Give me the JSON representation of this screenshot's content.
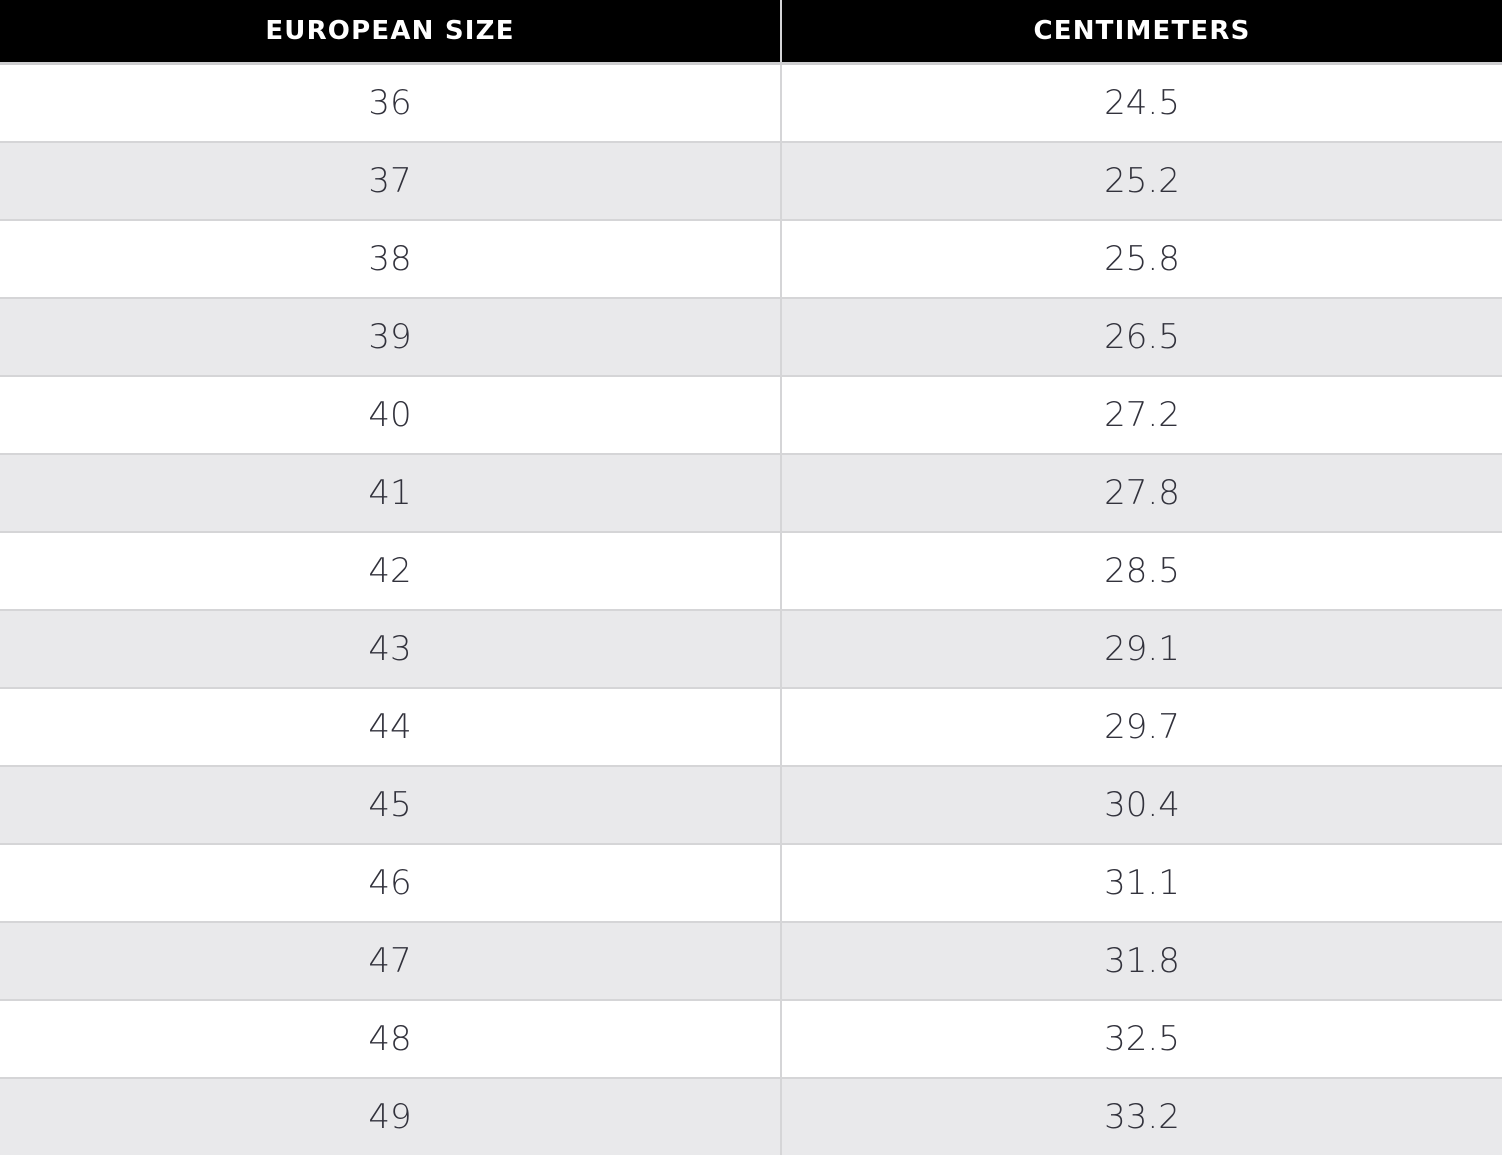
{
  "table": {
    "headers": [
      "EUROPEAN SIZE",
      "CENTIMETERS"
    ],
    "rows": [
      {
        "size": "36",
        "cm": "24.5"
      },
      {
        "size": "37",
        "cm": "25.2"
      },
      {
        "size": "38",
        "cm": "25.8"
      },
      {
        "size": "39",
        "cm": "26.5"
      },
      {
        "size": "40",
        "cm": "27.2"
      },
      {
        "size": "41",
        "cm": "27.8"
      },
      {
        "size": "42",
        "cm": "28.5"
      },
      {
        "size": "43",
        "cm": "29.1"
      },
      {
        "size": "44",
        "cm": "29.7"
      },
      {
        "size": "45",
        "cm": "30.4"
      },
      {
        "size": "46",
        "cm": "31.1"
      },
      {
        "size": "47",
        "cm": "31.8"
      },
      {
        "size": "48",
        "cm": "32.5"
      },
      {
        "size": "49",
        "cm": "33.2"
      }
    ]
  },
  "colors": {
    "header_bg": "#000000",
    "header_text": "#ffffff",
    "row_bg": "#ffffff",
    "row_alt_bg": "#e9e9eb",
    "cell_text": "#32323c",
    "border": "#d5d5d7"
  },
  "chart_data": {
    "type": "table",
    "columns": [
      "EUROPEAN SIZE",
      "CENTIMETERS"
    ],
    "rows": [
      [
        36,
        24.5
      ],
      [
        37,
        25.2
      ],
      [
        38,
        25.8
      ],
      [
        39,
        26.5
      ],
      [
        40,
        27.2
      ],
      [
        41,
        27.8
      ],
      [
        42,
        28.5
      ],
      [
        43,
        29.1
      ],
      [
        44,
        29.7
      ],
      [
        45,
        30.4
      ],
      [
        46,
        31.1
      ],
      [
        47,
        31.8
      ],
      [
        48,
        32.5
      ],
      [
        49,
        33.2
      ]
    ]
  }
}
